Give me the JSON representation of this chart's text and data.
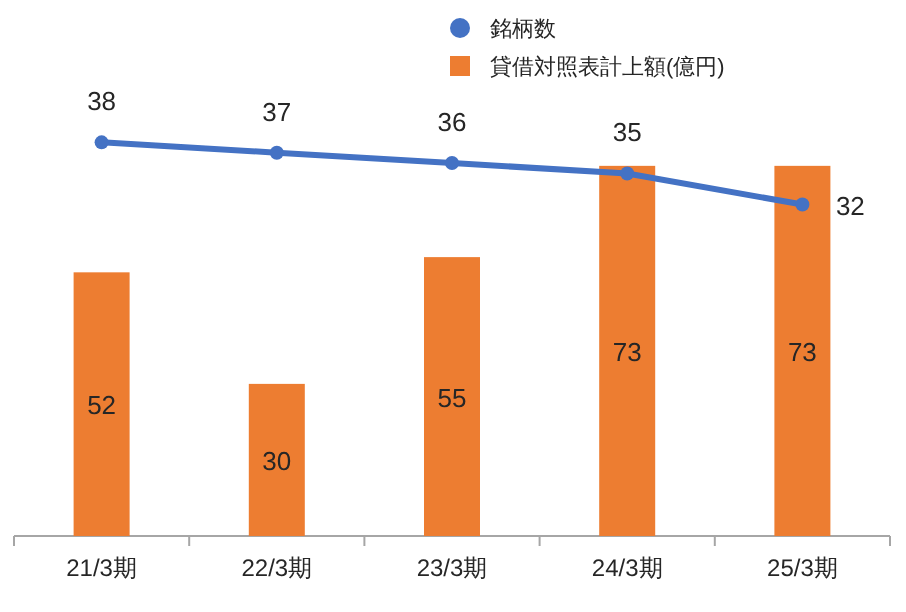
{
  "chart_data": {
    "type": "bar",
    "categories": [
      "21/3期",
      "22/3期",
      "23/3期",
      "24/3期",
      "25/3期"
    ],
    "series": [
      {
        "name": "銘柄数",
        "type": "line",
        "color": "#4472c4",
        "values": [
          38,
          37,
          36,
          35,
          32
        ],
        "axis": "y2"
      },
      {
        "name": "貸借対照表計上額(億円)",
        "color": "#ed7d31",
        "values": [
          52,
          30,
          55,
          73,
          73
        ]
      }
    ],
    "marker": "circle",
    "data_labels": true,
    "legend": "top right",
    "grid": false
  }
}
